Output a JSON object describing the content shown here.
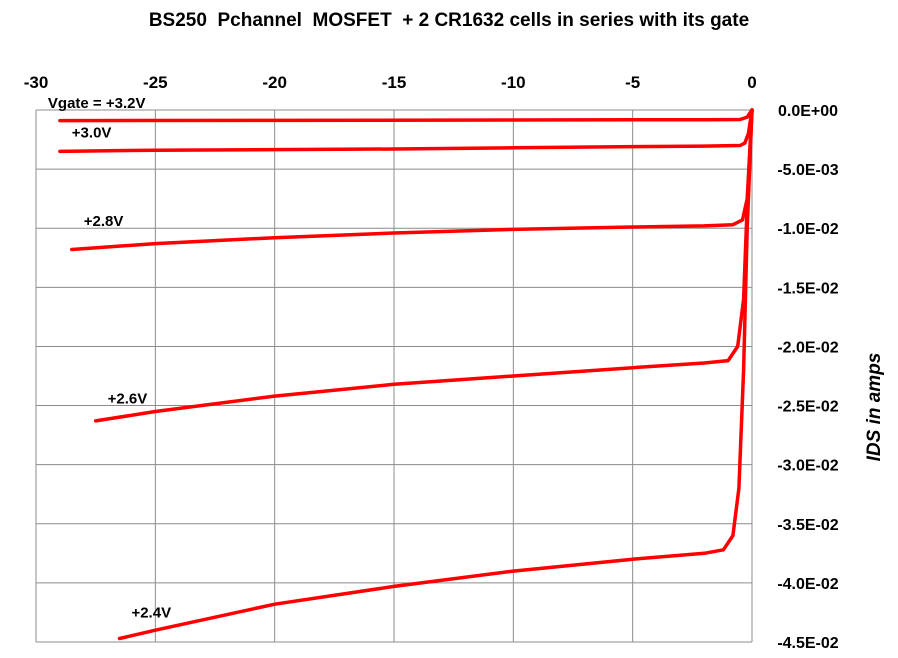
{
  "chart_data": {
    "type": "line",
    "title": "BS250  Pchannel  MOSFET  + 2 CR1632 cells in series with its gate",
    "xlabel": "",
    "ylabel": "IDS in amps",
    "xlim": [
      -30,
      0
    ],
    "ylim": [
      -0.045,
      0
    ],
    "x_ticks": [
      -30,
      -25,
      -20,
      -15,
      -10,
      -5,
      0
    ],
    "x_tick_labels": [
      "-30",
      "-25",
      "-20",
      "-15",
      "-10",
      "-5",
      "0"
    ],
    "y_ticks": [
      0,
      -0.005,
      -0.01,
      -0.015,
      -0.02,
      -0.025,
      -0.03,
      -0.035,
      -0.04,
      -0.045
    ],
    "y_tick_labels": [
      "0.0E+00",
      "-5.0E-03",
      "-1.0E-02",
      "-1.5E-02",
      "-2.0E-02",
      "-2.5E-02",
      "-3.0E-02",
      "-3.5E-02",
      "-4.0E-02",
      "-4.5E-02"
    ],
    "x_axis_position": "top",
    "y_axis_position": "right",
    "grid": true,
    "line_color": "#ff0000",
    "series": [
      {
        "name": "Vgate = +3.2V",
        "label_at": [
          -29.5,
          0.0006
        ],
        "x": [
          -29,
          -20,
          -10,
          -5,
          -2,
          -1,
          -0.5,
          -0.2,
          0
        ],
        "y": [
          -0.0009,
          -0.00088,
          -0.00085,
          -0.00083,
          -0.00082,
          -0.00081,
          -0.0008,
          -0.0006,
          0
        ]
      },
      {
        "name": "+3.0V",
        "label_at": [
          -28.5,
          -0.0019
        ],
        "x": [
          -29,
          -25,
          -20,
          -15,
          -10,
          -5,
          -2,
          -0.5,
          -0.3,
          -0.15,
          0
        ],
        "y": [
          -0.0035,
          -0.0034,
          -0.00335,
          -0.0033,
          -0.0032,
          -0.0031,
          -0.00305,
          -0.003,
          -0.0028,
          -0.002,
          0
        ]
      },
      {
        "name": "+2.8V",
        "label_at": [
          -28,
          -0.0094
        ],
        "x": [
          -28.5,
          -25,
          -20,
          -15,
          -10,
          -5,
          -2,
          -0.8,
          -0.4,
          -0.2,
          0
        ],
        "y": [
          -0.0118,
          -0.0113,
          -0.0108,
          -0.0104,
          -0.0101,
          -0.0099,
          -0.0098,
          -0.0097,
          -0.0093,
          -0.0075,
          0
        ]
      },
      {
        "name": "+2.6V",
        "label_at": [
          -27,
          -0.0244
        ],
        "x": [
          -27.5,
          -25,
          -20,
          -15,
          -10,
          -5,
          -2,
          -1,
          -0.6,
          -0.35,
          -0.2,
          0
        ],
        "y": [
          -0.0263,
          -0.0255,
          -0.0242,
          -0.0232,
          -0.0225,
          -0.0218,
          -0.0214,
          -0.0212,
          -0.02,
          -0.016,
          -0.008,
          0
        ]
      },
      {
        "name": "+2.4V",
        "label_at": [
          -26,
          -0.0425
        ],
        "x": [
          -26.5,
          -25,
          -20,
          -15,
          -10,
          -5,
          -2,
          -1.2,
          -0.8,
          -0.55,
          -0.35,
          -0.2,
          0
        ],
        "y": [
          -0.0447,
          -0.044,
          -0.0418,
          -0.0403,
          -0.039,
          -0.038,
          -0.0375,
          -0.0372,
          -0.036,
          -0.032,
          -0.022,
          -0.01,
          0
        ]
      }
    ]
  }
}
